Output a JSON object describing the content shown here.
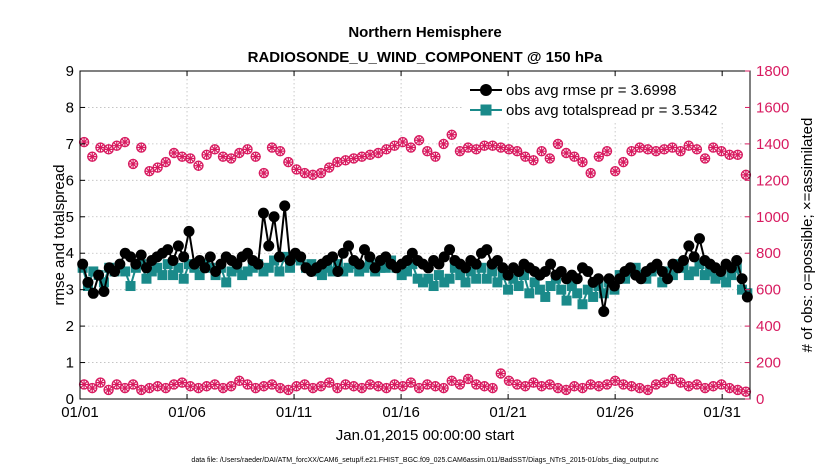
{
  "chart_data": {
    "type": "line",
    "title": "Northern Hemisphere",
    "subtitle": "RADIOSONDE_U_WIND_COMPONENT @ 150 hPa",
    "xlabel": "Jan.01,2015 00:00:00 start",
    "ylabel": "rmse and totalspread",
    "y2label": "# of obs: o=possible; ×=assimilated",
    "xlim": [
      0,
      31.3
    ],
    "ylim": [
      0,
      9
    ],
    "y2lim": [
      0,
      1800
    ],
    "xticks": [
      0,
      5,
      10,
      15,
      20,
      25,
      30
    ],
    "xticklabels": [
      "01/01",
      "01/06",
      "01/11",
      "01/16",
      "01/21",
      "01/26",
      "01/31"
    ],
    "yticks": [
      "0",
      "1",
      "2",
      "3",
      "4",
      "5",
      "6",
      "7",
      "8",
      "9"
    ],
    "y2ticks": [
      "0",
      "200",
      "400",
      "600",
      "800",
      "1000",
      "1200",
      "1400",
      "1600",
      "1800"
    ],
    "grid": true,
    "legend_position": "top-right",
    "colors": {
      "rmse": "#000000",
      "spread": "#1a8a8a",
      "obs": "#d81b60"
    },
    "series": [
      {
        "name": "obs avg rmse pr = 3.6998",
        "axis": "left",
        "marker": "circle",
        "values": [
          3.7,
          3.2,
          2.9,
          3.4,
          2.95,
          3.6,
          3.5,
          3.7,
          4.0,
          3.9,
          3.7,
          3.95,
          3.6,
          3.8,
          3.9,
          4.0,
          4.1,
          3.8,
          4.2,
          3.9,
          4.6,
          3.7,
          3.8,
          3.6,
          3.9,
          3.5,
          3.7,
          3.9,
          3.8,
          3.7,
          3.9,
          4.0,
          3.8,
          3.7,
          5.1,
          4.2,
          5.0,
          3.9,
          5.3,
          3.8,
          4.0,
          3.9,
          3.6,
          3.5,
          3.6,
          3.7,
          3.8,
          3.9,
          3.5,
          4.0,
          4.2,
          3.8,
          3.7,
          4.1,
          3.9,
          3.6,
          3.8,
          3.9,
          3.7,
          3.6,
          3.7,
          3.8,
          4.0,
          3.8,
          3.7,
          3.6,
          3.8,
          3.7,
          3.9,
          4.1,
          3.8,
          3.7,
          3.6,
          3.8,
          3.7,
          4.0,
          4.1,
          3.7,
          3.8,
          3.6,
          3.4,
          3.6,
          3.5,
          3.7,
          3.6,
          3.5,
          3.4,
          3.5,
          3.7,
          3.4,
          3.5,
          3.3,
          3.4,
          3.3,
          3.6,
          3.5,
          3.2,
          3.3,
          2.4,
          3.3,
          3.1,
          3.3,
          3.5,
          3.6,
          3.4,
          3.3,
          3.5,
          3.6,
          3.7,
          3.5,
          3.3,
          3.7,
          3.6,
          3.8,
          4.2,
          3.9,
          4.4,
          3.8,
          3.7,
          3.6,
          3.5,
          3.7,
          3.6,
          3.8,
          3.3,
          2.8
        ]
      },
      {
        "name": "obs avg totalspread pr = 3.5342",
        "axis": "left",
        "marker": "square",
        "values": [
          3.6,
          3.1,
          3.5,
          3.4,
          3.2,
          3.6,
          3.5,
          3.6,
          3.5,
          3.1,
          3.6,
          3.7,
          3.3,
          3.5,
          3.6,
          3.4,
          3.7,
          3.4,
          3.6,
          3.3,
          3.7,
          3.6,
          3.4,
          3.7,
          3.6,
          3.4,
          3.6,
          3.2,
          3.5,
          3.6,
          3.4,
          3.5,
          3.6,
          3.7,
          3.5,
          3.6,
          3.8,
          3.5,
          3.9,
          3.6,
          3.9,
          3.8,
          3.6,
          3.7,
          3.5,
          3.4,
          3.6,
          3.5,
          3.7,
          3.5,
          3.6,
          3.7,
          3.5,
          3.6,
          3.7,
          3.5,
          3.6,
          3.6,
          3.8,
          3.6,
          3.4,
          3.5,
          3.7,
          3.3,
          3.2,
          3.3,
          3.1,
          3.4,
          3.2,
          3.3,
          3.6,
          3.4,
          3.2,
          3.5,
          3.3,
          3.6,
          3.3,
          3.5,
          3.2,
          3.4,
          3.0,
          3.3,
          3.1,
          3.4,
          2.9,
          3.2,
          3.0,
          2.8,
          3.1,
          3.3,
          3.0,
          2.7,
          3.1,
          2.9,
          2.6,
          3.0,
          2.8,
          3.1,
          2.9,
          3.2,
          3.0,
          3.4,
          3.3,
          3.5,
          3.6,
          3.4,
          3.3,
          3.5,
          3.6,
          3.2,
          3.5,
          3.4,
          3.7,
          3.6,
          3.4,
          3.5,
          3.7,
          3.4,
          3.5,
          3.3,
          3.4,
          3.2,
          3.4,
          3.6,
          3.0,
          2.9
        ]
      },
      {
        "name": "# of obs possible",
        "axis": "right",
        "marker": "circle-open",
        "values": [
          1410,
          1330,
          1380,
          1370,
          1390,
          1410,
          1290,
          1380,
          1250,
          1270,
          1300,
          1350,
          1330,
          1320,
          1280,
          1340,
          1370,
          1330,
          1320,
          1350,
          1370,
          1330,
          1240,
          1380,
          1360,
          1300,
          1260,
          1240,
          1230,
          1240,
          1270,
          1300,
          1310,
          1320,
          1330,
          1340,
          1350,
          1370,
          1390,
          1410,
          1380,
          1420,
          1360,
          1330,
          1400,
          1450,
          1360,
          1380,
          1370,
          1390,
          1390,
          1380,
          1370,
          1360,
          1330,
          1310,
          1360,
          1320,
          1400,
          1350,
          1330,
          1300,
          1240,
          1330,
          1360,
          1250,
          1300,
          1360,
          1380,
          1370,
          1360,
          1370,
          1380,
          1360,
          1390,
          1370,
          1320,
          1380,
          1360,
          1340,
          1340,
          1230
        ],
        "assimilated": [
          80,
          60,
          90,
          50,
          80,
          60,
          80,
          50,
          60,
          70,
          60,
          80,
          90,
          70,
          60,
          70,
          80,
          60,
          70,
          100,
          80,
          60,
          70,
          80,
          60,
          50,
          70,
          80,
          60,
          70,
          90,
          60,
          80,
          70,
          60,
          80,
          70,
          60,
          80,
          70,
          90,
          60,
          80,
          70,
          60,
          100,
          80,
          110,
          80,
          70,
          60,
          140,
          100,
          80,
          70,
          90,
          70,
          80,
          60,
          50,
          70,
          60,
          80,
          70,
          80,
          100,
          80,
          70,
          60,
          50,
          80,
          90,
          110,
          90,
          70,
          80,
          60,
          70,
          80,
          60,
          50,
          40
        ]
      }
    ]
  },
  "footnote": "data file: /Users/raeder/DAI/ATM_forcXX/CAM6_setup/f.e21.FHIST_BGC.f09_025.CAM6assim.011/BadSST/Diags_NTrS_2015-01/obs_diag_output.nc"
}
